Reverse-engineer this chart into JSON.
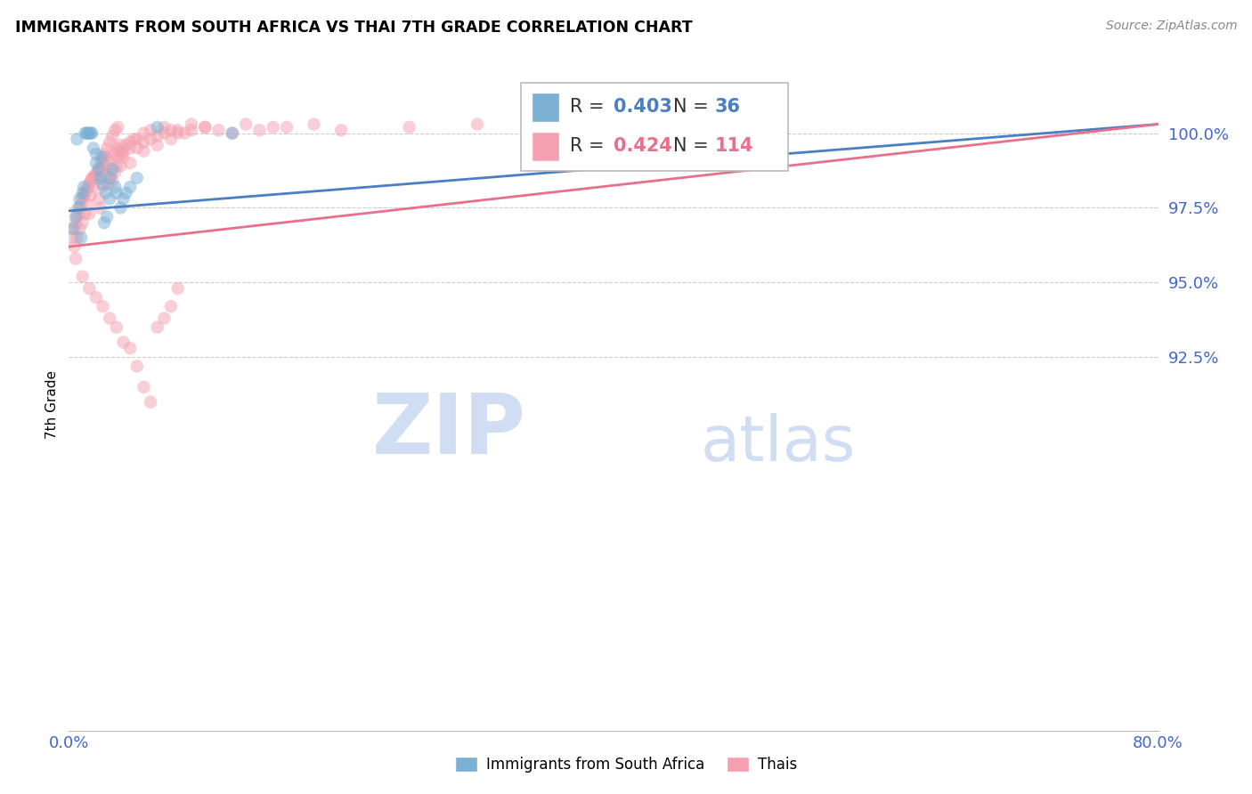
{
  "title": "IMMIGRANTS FROM SOUTH AFRICA VS THAI 7TH GRADE CORRELATION CHART",
  "source_text": "Source: ZipAtlas.com",
  "ylabel": "7th Grade",
  "xlim": [
    0.0,
    80.0
  ],
  "ylim": [
    80.0,
    101.8
  ],
  "y_ticks": [
    92.5,
    95.0,
    97.5,
    100.0
  ],
  "blue_R": 0.403,
  "blue_N": 36,
  "pink_R": 0.424,
  "pink_N": 114,
  "blue_color": "#7BAFD4",
  "pink_color": "#F4A0B0",
  "blue_line_color": "#4A7FC1",
  "pink_line_color": "#E8708A",
  "legend_label_blue": "Immigrants from South Africa",
  "legend_label_pink": "Thais",
  "watermark_zip": "ZIP",
  "watermark_atlas": "atlas",
  "blue_scatter_x": [
    0.3,
    0.5,
    0.7,
    0.8,
    1.0,
    1.1,
    1.2,
    1.3,
    1.4,
    1.5,
    1.6,
    1.7,
    1.8,
    2.0,
    2.0,
    2.2,
    2.3,
    2.4,
    2.5,
    2.6,
    2.7,
    2.8,
    3.0,
    3.0,
    3.2,
    3.4,
    3.5,
    3.8,
    4.0,
    4.2,
    4.5,
    5.0,
    6.5,
    12.0,
    0.6,
    0.9
  ],
  "blue_scatter_y": [
    96.8,
    97.2,
    97.5,
    97.8,
    98.0,
    98.2,
    100.0,
    100.0,
    100.0,
    100.0,
    100.0,
    100.0,
    99.5,
    99.3,
    99.0,
    98.8,
    98.5,
    99.2,
    98.3,
    97.0,
    98.0,
    97.2,
    98.5,
    97.8,
    98.8,
    98.2,
    98.0,
    97.5,
    97.8,
    98.0,
    98.2,
    98.5,
    100.2,
    100.0,
    99.8,
    96.5
  ],
  "pink_scatter_x": [
    0.3,
    0.4,
    0.5,
    0.6,
    0.7,
    0.8,
    0.9,
    1.0,
    1.1,
    1.2,
    1.3,
    1.4,
    1.5,
    1.6,
    1.7,
    1.8,
    1.9,
    2.0,
    2.1,
    2.2,
    2.3,
    2.4,
    2.5,
    2.6,
    2.7,
    2.8,
    2.9,
    3.0,
    3.1,
    3.2,
    3.3,
    3.4,
    3.5,
    3.6,
    3.7,
    3.8,
    3.9,
    4.0,
    4.2,
    4.5,
    4.8,
    5.0,
    5.5,
    6.0,
    6.5,
    7.0,
    7.5,
    8.0,
    9.0,
    10.0,
    11.0,
    12.0,
    13.0,
    14.0,
    15.0,
    16.0,
    18.0,
    20.0,
    25.0,
    30.0,
    35.0,
    40.0,
    43.0,
    0.4,
    0.6,
    0.8,
    1.0,
    1.2,
    1.4,
    1.6,
    1.8,
    2.0,
    2.2,
    2.4,
    2.6,
    2.8,
    3.0,
    3.2,
    3.4,
    3.6,
    3.8,
    4.0,
    4.5,
    5.0,
    5.5,
    6.0,
    7.0,
    8.0,
    9.0,
    10.0,
    1.5,
    2.5,
    3.5,
    4.5,
    5.5,
    6.5,
    7.5,
    8.5,
    0.5,
    1.0,
    1.5,
    2.0,
    2.5,
    3.0,
    3.5,
    4.0,
    4.5,
    5.0,
    5.5,
    6.0,
    6.5,
    7.0,
    7.5,
    8.0
  ],
  "pink_scatter_y": [
    96.5,
    96.8,
    97.0,
    97.2,
    97.3,
    97.5,
    97.6,
    97.8,
    97.9,
    98.0,
    98.1,
    98.2,
    98.3,
    98.4,
    98.5,
    98.5,
    98.6,
    98.6,
    98.7,
    97.8,
    97.5,
    98.8,
    99.0,
    98.7,
    99.2,
    98.9,
    98.3,
    99.1,
    98.6,
    98.4,
    99.3,
    98.7,
    99.5,
    99.2,
    99.4,
    99.6,
    99.3,
    99.4,
    99.6,
    99.7,
    99.8,
    99.5,
    99.7,
    99.8,
    99.9,
    100.0,
    100.1,
    100.0,
    100.1,
    100.2,
    100.1,
    100.0,
    100.3,
    100.1,
    100.2,
    100.2,
    100.3,
    100.1,
    100.2,
    100.3,
    100.1,
    100.0,
    100.0,
    96.2,
    96.5,
    96.8,
    97.0,
    97.3,
    97.6,
    97.9,
    98.2,
    98.5,
    98.8,
    99.1,
    99.3,
    99.5,
    99.7,
    99.9,
    100.1,
    100.2,
    98.9,
    99.2,
    99.5,
    99.8,
    100.0,
    100.1,
    100.2,
    100.1,
    100.3,
    100.2,
    97.3,
    98.2,
    98.9,
    99.0,
    99.4,
    99.6,
    99.8,
    100.0,
    95.8,
    95.2,
    94.8,
    94.5,
    94.2,
    93.8,
    93.5,
    93.0,
    92.8,
    92.2,
    91.5,
    91.0,
    93.5,
    93.8,
    94.2,
    94.8
  ],
  "blue_line_x0": 0.0,
  "blue_line_y0": 97.4,
  "blue_line_x1": 80.0,
  "blue_line_y1": 100.3,
  "pink_line_x0": 0.0,
  "pink_line_y0": 96.2,
  "pink_line_x1": 80.0,
  "pink_line_y1": 100.3
}
